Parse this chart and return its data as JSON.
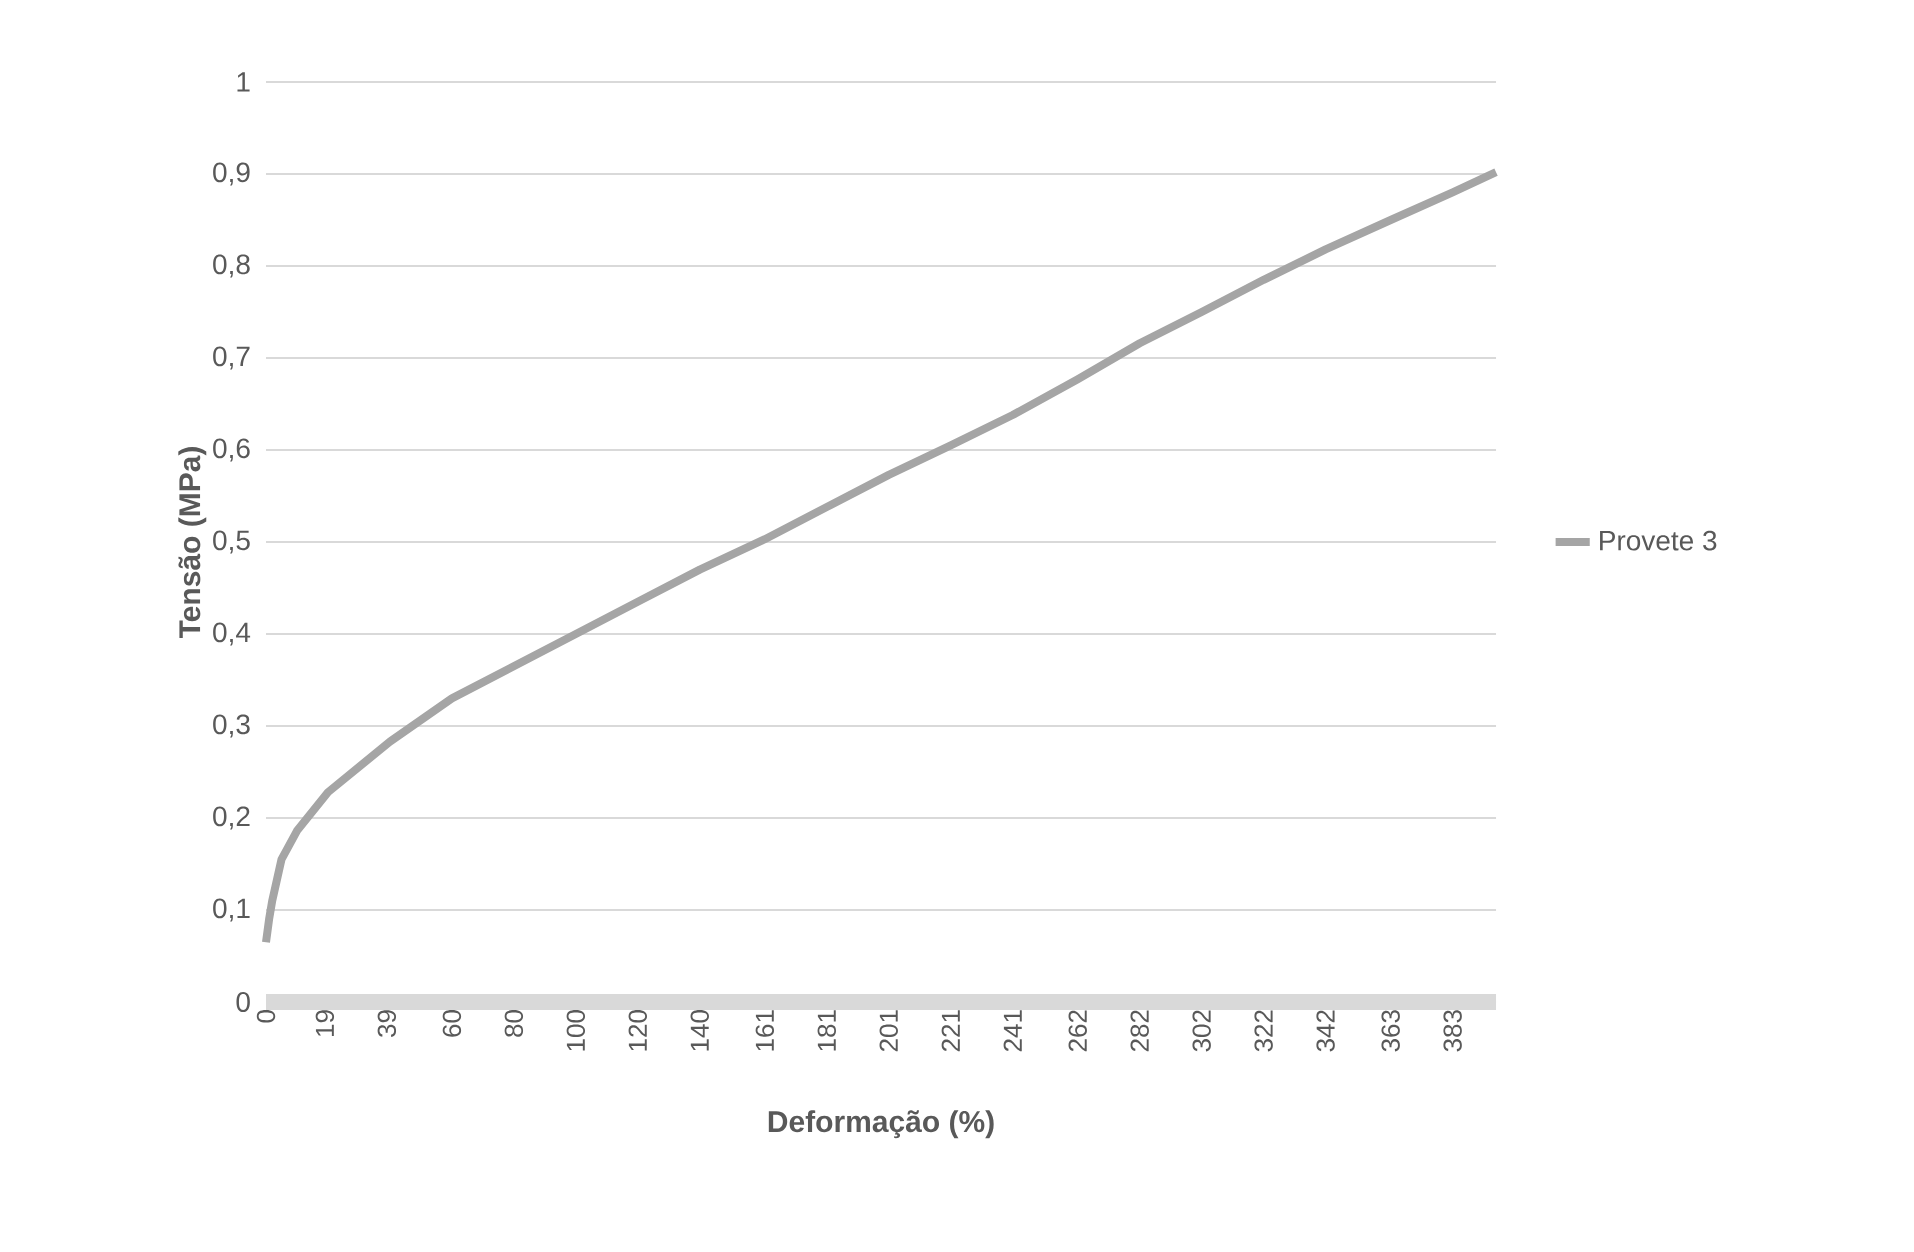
{
  "chart_data": {
    "type": "line",
    "xlabel": "Deformação (%)",
    "ylabel": "Tensão (MPa)",
    "series": [
      {
        "name": "Provete 3",
        "color": "#a5a5a5",
        "x": [
          0,
          1,
          2,
          5,
          10,
          20,
          40,
          60,
          80,
          100,
          120,
          140,
          161,
          181,
          201,
          221,
          241,
          262,
          282,
          302,
          322,
          342,
          363,
          383,
          397
        ],
        "values": [
          0.065,
          0.09,
          0.11,
          0.155,
          0.186,
          0.228,
          0.283,
          0.33,
          0.365,
          0.4,
          0.435,
          0.47,
          0.503,
          0.538,
          0.573,
          0.605,
          0.638,
          0.677,
          0.716,
          0.75,
          0.785,
          0.818,
          0.85,
          0.88,
          0.902
        ]
      }
    ],
    "xlim": [
      0,
      397
    ],
    "ylim": [
      0,
      1
    ],
    "xticks": [
      0,
      19,
      39,
      60,
      80,
      100,
      120,
      140,
      161,
      181,
      201,
      221,
      241,
      262,
      282,
      302,
      322,
      342,
      363,
      383
    ],
    "yticks": [
      0,
      {
        "value": 0.1,
        "label": "0,1"
      },
      {
        "value": 0.2,
        "label": "0,2"
      },
      {
        "value": 0.3,
        "label": "0,3"
      },
      {
        "value": 0.4,
        "label": "0,4"
      },
      {
        "value": 0.5,
        "label": "0,5"
      },
      {
        "value": 0.6,
        "label": "0,6"
      },
      {
        "value": 0.7,
        "label": "0,7"
      },
      {
        "value": 0.8,
        "label": "0,8"
      },
      {
        "value": 0.9,
        "label": "0,9"
      },
      1
    ],
    "grid": "y",
    "legend": "right",
    "marker": "none",
    "line_style": "solid"
  }
}
